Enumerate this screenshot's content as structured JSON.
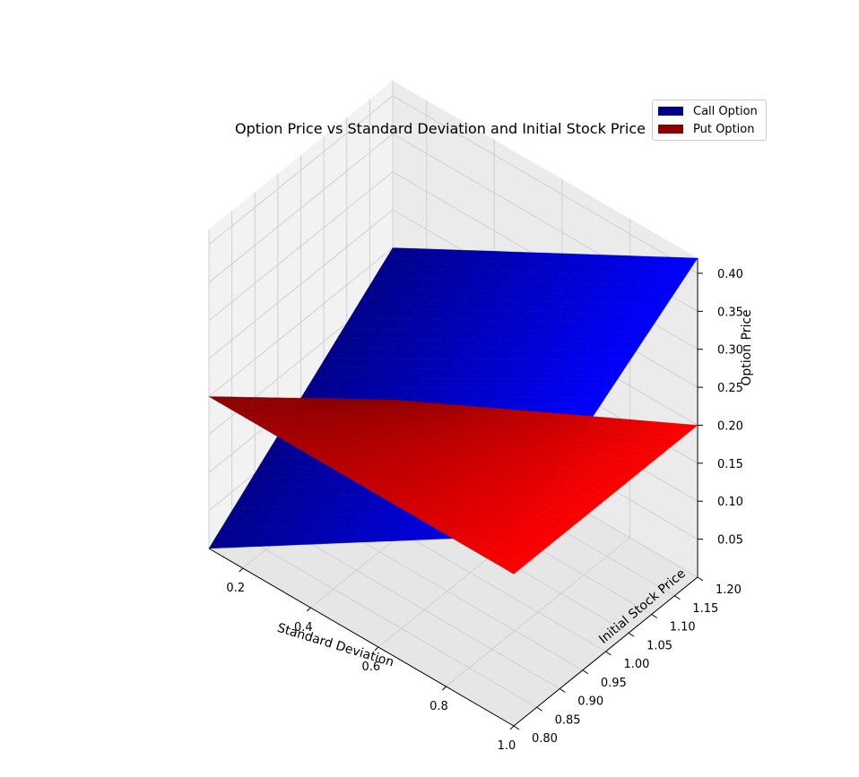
{
  "chart_data": {
    "type": "surface3d",
    "title": "Option Price vs Standard Deviation and Initial Stock Price",
    "xlabel": "Standard Deviation",
    "ylabel": "Initial Stock Price",
    "zlabel": "Option Price",
    "xlim": [
      0.1,
      1.0
    ],
    "ylim": [
      0.8,
      1.2
    ],
    "zlim": [
      0.0,
      0.42
    ],
    "x_ticks": [
      "0.2",
      "0.4",
      "0.6",
      "0.8",
      "1.0"
    ],
    "y_ticks": [
      "0.80",
      "0.85",
      "0.90",
      "0.95",
      "1.00",
      "1.05",
      "1.10",
      "1.15",
      "1.20"
    ],
    "z_ticks": [
      "0.05",
      "0.10",
      "0.15",
      "0.20",
      "0.25",
      "0.30",
      "0.35",
      "0.40"
    ],
    "grid": true,
    "legend_position": "top-right",
    "series": [
      {
        "name": "Call Option",
        "color": "#0000ff",
        "legend_color": "#00008b",
        "x": [
          0.1,
          1.0
        ],
        "y": [
          0.8,
          1.2
        ],
        "corner_values": {
          "x0_y0": 0.0,
          "x0_y1": 0.2,
          "x1_y0": 0.25,
          "x1_y1": 0.42
        }
      },
      {
        "name": "Put Option",
        "color": "#ff0000",
        "legend_color": "#8b0000",
        "x": [
          0.1,
          1.0
        ],
        "y": [
          0.8,
          1.2
        ],
        "corner_values": {
          "x0_y0": 0.2,
          "x0_y1": 0.0,
          "x1_y0": 0.2,
          "x1_y1": 0.2
        }
      }
    ]
  }
}
